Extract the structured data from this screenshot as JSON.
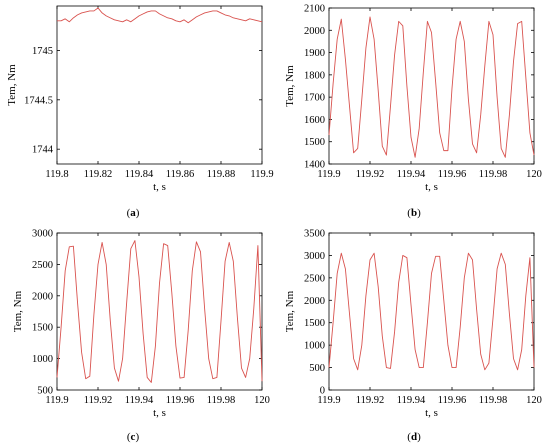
{
  "colors": {
    "series": "#d9534f",
    "frame": "#000000"
  },
  "chart_data": [
    {
      "type": "line",
      "panel_label": "a",
      "xlabel": "t, s",
      "ylabel": "Tem, Nm",
      "xlim": [
        119.8,
        119.9
      ],
      "ylim": [
        1743.85,
        1745.45
      ],
      "xticks": [
        119.8,
        119.82,
        119.84,
        119.86,
        119.88,
        119.9
      ],
      "xtick_labels": [
        "119.8",
        "119.82",
        "119.84",
        "119.86",
        "119.88",
        "119.9"
      ],
      "yticks": [
        1744,
        1744.5,
        1745
      ],
      "ytick_labels": [
        "1744",
        "1744.5",
        "1745"
      ],
      "x": [
        119.8,
        119.802,
        119.804,
        119.806,
        119.808,
        119.81,
        119.812,
        119.814,
        119.816,
        119.818,
        119.82,
        119.822,
        119.824,
        119.826,
        119.828,
        119.83,
        119.832,
        119.834,
        119.836,
        119.838,
        119.84,
        119.842,
        119.844,
        119.846,
        119.848,
        119.85,
        119.852,
        119.854,
        119.856,
        119.858,
        119.86,
        119.862,
        119.864,
        119.866,
        119.868,
        119.87,
        119.872,
        119.874,
        119.876,
        119.878,
        119.88,
        119.882,
        119.884,
        119.886,
        119.888,
        119.89,
        119.892,
        119.894,
        119.896,
        119.898,
        119.9
      ],
      "series": [
        {
          "values": [
            1745.3,
            1745.3,
            1745.32,
            1745.29,
            1745.33,
            1745.36,
            1745.38,
            1745.39,
            1745.4,
            1745.4,
            1745.43,
            1745.38,
            1745.35,
            1745.33,
            1745.31,
            1745.3,
            1745.29,
            1745.31,
            1745.29,
            1745.32,
            1745.35,
            1745.37,
            1745.39,
            1745.4,
            1745.4,
            1745.37,
            1745.35,
            1745.33,
            1745.32,
            1745.3,
            1745.29,
            1745.31,
            1745.28,
            1745.31,
            1745.34,
            1745.36,
            1745.38,
            1745.39,
            1745.4,
            1745.4,
            1745.38,
            1745.36,
            1745.35,
            1745.33,
            1745.32,
            1745.31,
            1745.3,
            1745.32,
            1745.31,
            1745.3,
            1745.29
          ]
        }
      ]
    },
    {
      "type": "line",
      "panel_label": "b",
      "xlabel": "t, s",
      "ylabel": "Tem, Nm",
      "xlim": [
        119.9,
        120
      ],
      "ylim": [
        1400,
        2100
      ],
      "xticks": [
        119.9,
        119.92,
        119.94,
        119.96,
        119.98,
        120
      ],
      "xtick_labels": [
        "119.9",
        "119.92",
        "119.94",
        "119.96",
        "119.98",
        "120"
      ],
      "yticks": [
        1400,
        1500,
        1600,
        1700,
        1800,
        1900,
        2000,
        2100
      ],
      "ytick_labels": [
        "1400",
        "1500",
        "1600",
        "1700",
        "1800",
        "1900",
        "2000",
        "2100"
      ],
      "x": [
        119.9,
        119.902,
        119.904,
        119.906,
        119.908,
        119.91,
        119.912,
        119.914,
        119.916,
        119.918,
        119.92,
        119.922,
        119.924,
        119.926,
        119.928,
        119.93,
        119.932,
        119.934,
        119.936,
        119.938,
        119.94,
        119.942,
        119.944,
        119.946,
        119.948,
        119.95,
        119.952,
        119.954,
        119.956,
        119.958,
        119.96,
        119.962,
        119.964,
        119.966,
        119.968,
        119.97,
        119.972,
        119.974,
        119.976,
        119.978,
        119.98,
        119.982,
        119.984,
        119.986,
        119.988,
        119.99,
        119.992,
        119.994,
        119.996,
        119.998,
        120
      ],
      "series": [
        {
          "values": [
            1530,
            1760,
            1960,
            2050,
            1870,
            1660,
            1450,
            1470,
            1690,
            1920,
            2060,
            1960,
            1730,
            1480,
            1440,
            1660,
            1890,
            2040,
            2020,
            1750,
            1520,
            1430,
            1560,
            1810,
            2040,
            1990,
            1770,
            1540,
            1460,
            1460,
            1740,
            1960,
            2040,
            1950,
            1690,
            1490,
            1450,
            1620,
            1840,
            2040,
            1980,
            1700,
            1470,
            1430,
            1620,
            1860,
            2030,
            2040,
            1790,
            1540,
            1440
          ]
        }
      ]
    },
    {
      "type": "line",
      "panel_label": "c",
      "xlabel": "t, s",
      "ylabel": "Tem, Nm",
      "xlim": [
        119.9,
        120
      ],
      "ylim": [
        500,
        3000
      ],
      "xticks": [
        119.9,
        119.92,
        119.94,
        119.96,
        119.98,
        120
      ],
      "xtick_labels": [
        "119.9",
        "119.92",
        "119.94",
        "119.96",
        "119.98",
        "120"
      ],
      "yticks": [
        500,
        1000,
        1500,
        2000,
        2500,
        3000
      ],
      "ytick_labels": [
        "500",
        "1000",
        "1500",
        "2000",
        "2500",
        "3000"
      ],
      "x": [
        119.9,
        119.902,
        119.904,
        119.906,
        119.908,
        119.91,
        119.912,
        119.914,
        119.916,
        119.918,
        119.92,
        119.922,
        119.924,
        119.926,
        119.928,
        119.93,
        119.932,
        119.934,
        119.936,
        119.938,
        119.94,
        119.942,
        119.944,
        119.946,
        119.948,
        119.95,
        119.952,
        119.954,
        119.956,
        119.958,
        119.96,
        119.962,
        119.964,
        119.966,
        119.968,
        119.97,
        119.972,
        119.974,
        119.976,
        119.978,
        119.98,
        119.982,
        119.984,
        119.986,
        119.988,
        119.99,
        119.992,
        119.994,
        119.996,
        119.998,
        120
      ],
      "series": [
        {
          "values": [
            700,
            1500,
            2400,
            2780,
            2790,
            1900,
            1100,
            680,
            720,
            1700,
            2500,
            2850,
            2500,
            1600,
            850,
            640,
            1000,
            1900,
            2750,
            2880,
            2300,
            1400,
            700,
            620,
            1200,
            2200,
            2830,
            2800,
            2050,
            1200,
            690,
            700,
            1450,
            2400,
            2860,
            2700,
            1800,
            1000,
            680,
            700,
            1600,
            2550,
            2850,
            2550,
            1650,
            850,
            700,
            1000,
            1800,
            2800,
            640
          ]
        }
      ]
    },
    {
      "type": "line",
      "panel_label": "d",
      "xlabel": "t, s",
      "ylabel": "Tem, Nm",
      "xlim": [
        119.9,
        120
      ],
      "ylim": [
        0,
        3500
      ],
      "xticks": [
        119.9,
        119.92,
        119.94,
        119.96,
        119.98,
        120
      ],
      "xtick_labels": [
        "119.9",
        "119.92",
        "119.94",
        "119.96",
        "119.98",
        "120"
      ],
      "yticks": [
        0,
        500,
        1000,
        1500,
        2000,
        2500,
        3000,
        3500
      ],
      "ytick_labels": [
        "0",
        "500",
        "1000",
        "1500",
        "2000",
        "2500",
        "3000",
        "3500"
      ],
      "x": [
        119.9,
        119.902,
        119.904,
        119.906,
        119.908,
        119.91,
        119.912,
        119.914,
        119.916,
        119.918,
        119.92,
        119.922,
        119.924,
        119.926,
        119.928,
        119.93,
        119.932,
        119.934,
        119.936,
        119.938,
        119.94,
        119.942,
        119.944,
        119.946,
        119.948,
        119.95,
        119.952,
        119.954,
        119.956,
        119.958,
        119.96,
        119.962,
        119.964,
        119.966,
        119.968,
        119.97,
        119.972,
        119.974,
        119.976,
        119.978,
        119.98,
        119.982,
        119.984,
        119.986,
        119.988,
        119.99,
        119.992,
        119.994,
        119.996,
        119.998,
        120
      ],
      "series": [
        {
          "values": [
            500,
            1500,
            2600,
            3050,
            2700,
            1700,
            700,
            450,
            1000,
            2100,
            2900,
            3050,
            2300,
            1200,
            500,
            480,
            1300,
            2400,
            3000,
            2950,
            1900,
            900,
            500,
            500,
            1500,
            2600,
            2980,
            2980,
            2000,
            1000,
            500,
            500,
            1400,
            2500,
            3050,
            2900,
            1800,
            800,
            450,
            600,
            1600,
            2700,
            3050,
            2800,
            1700,
            700,
            450,
            900,
            2100,
            2950,
            500
          ]
        }
      ]
    }
  ]
}
